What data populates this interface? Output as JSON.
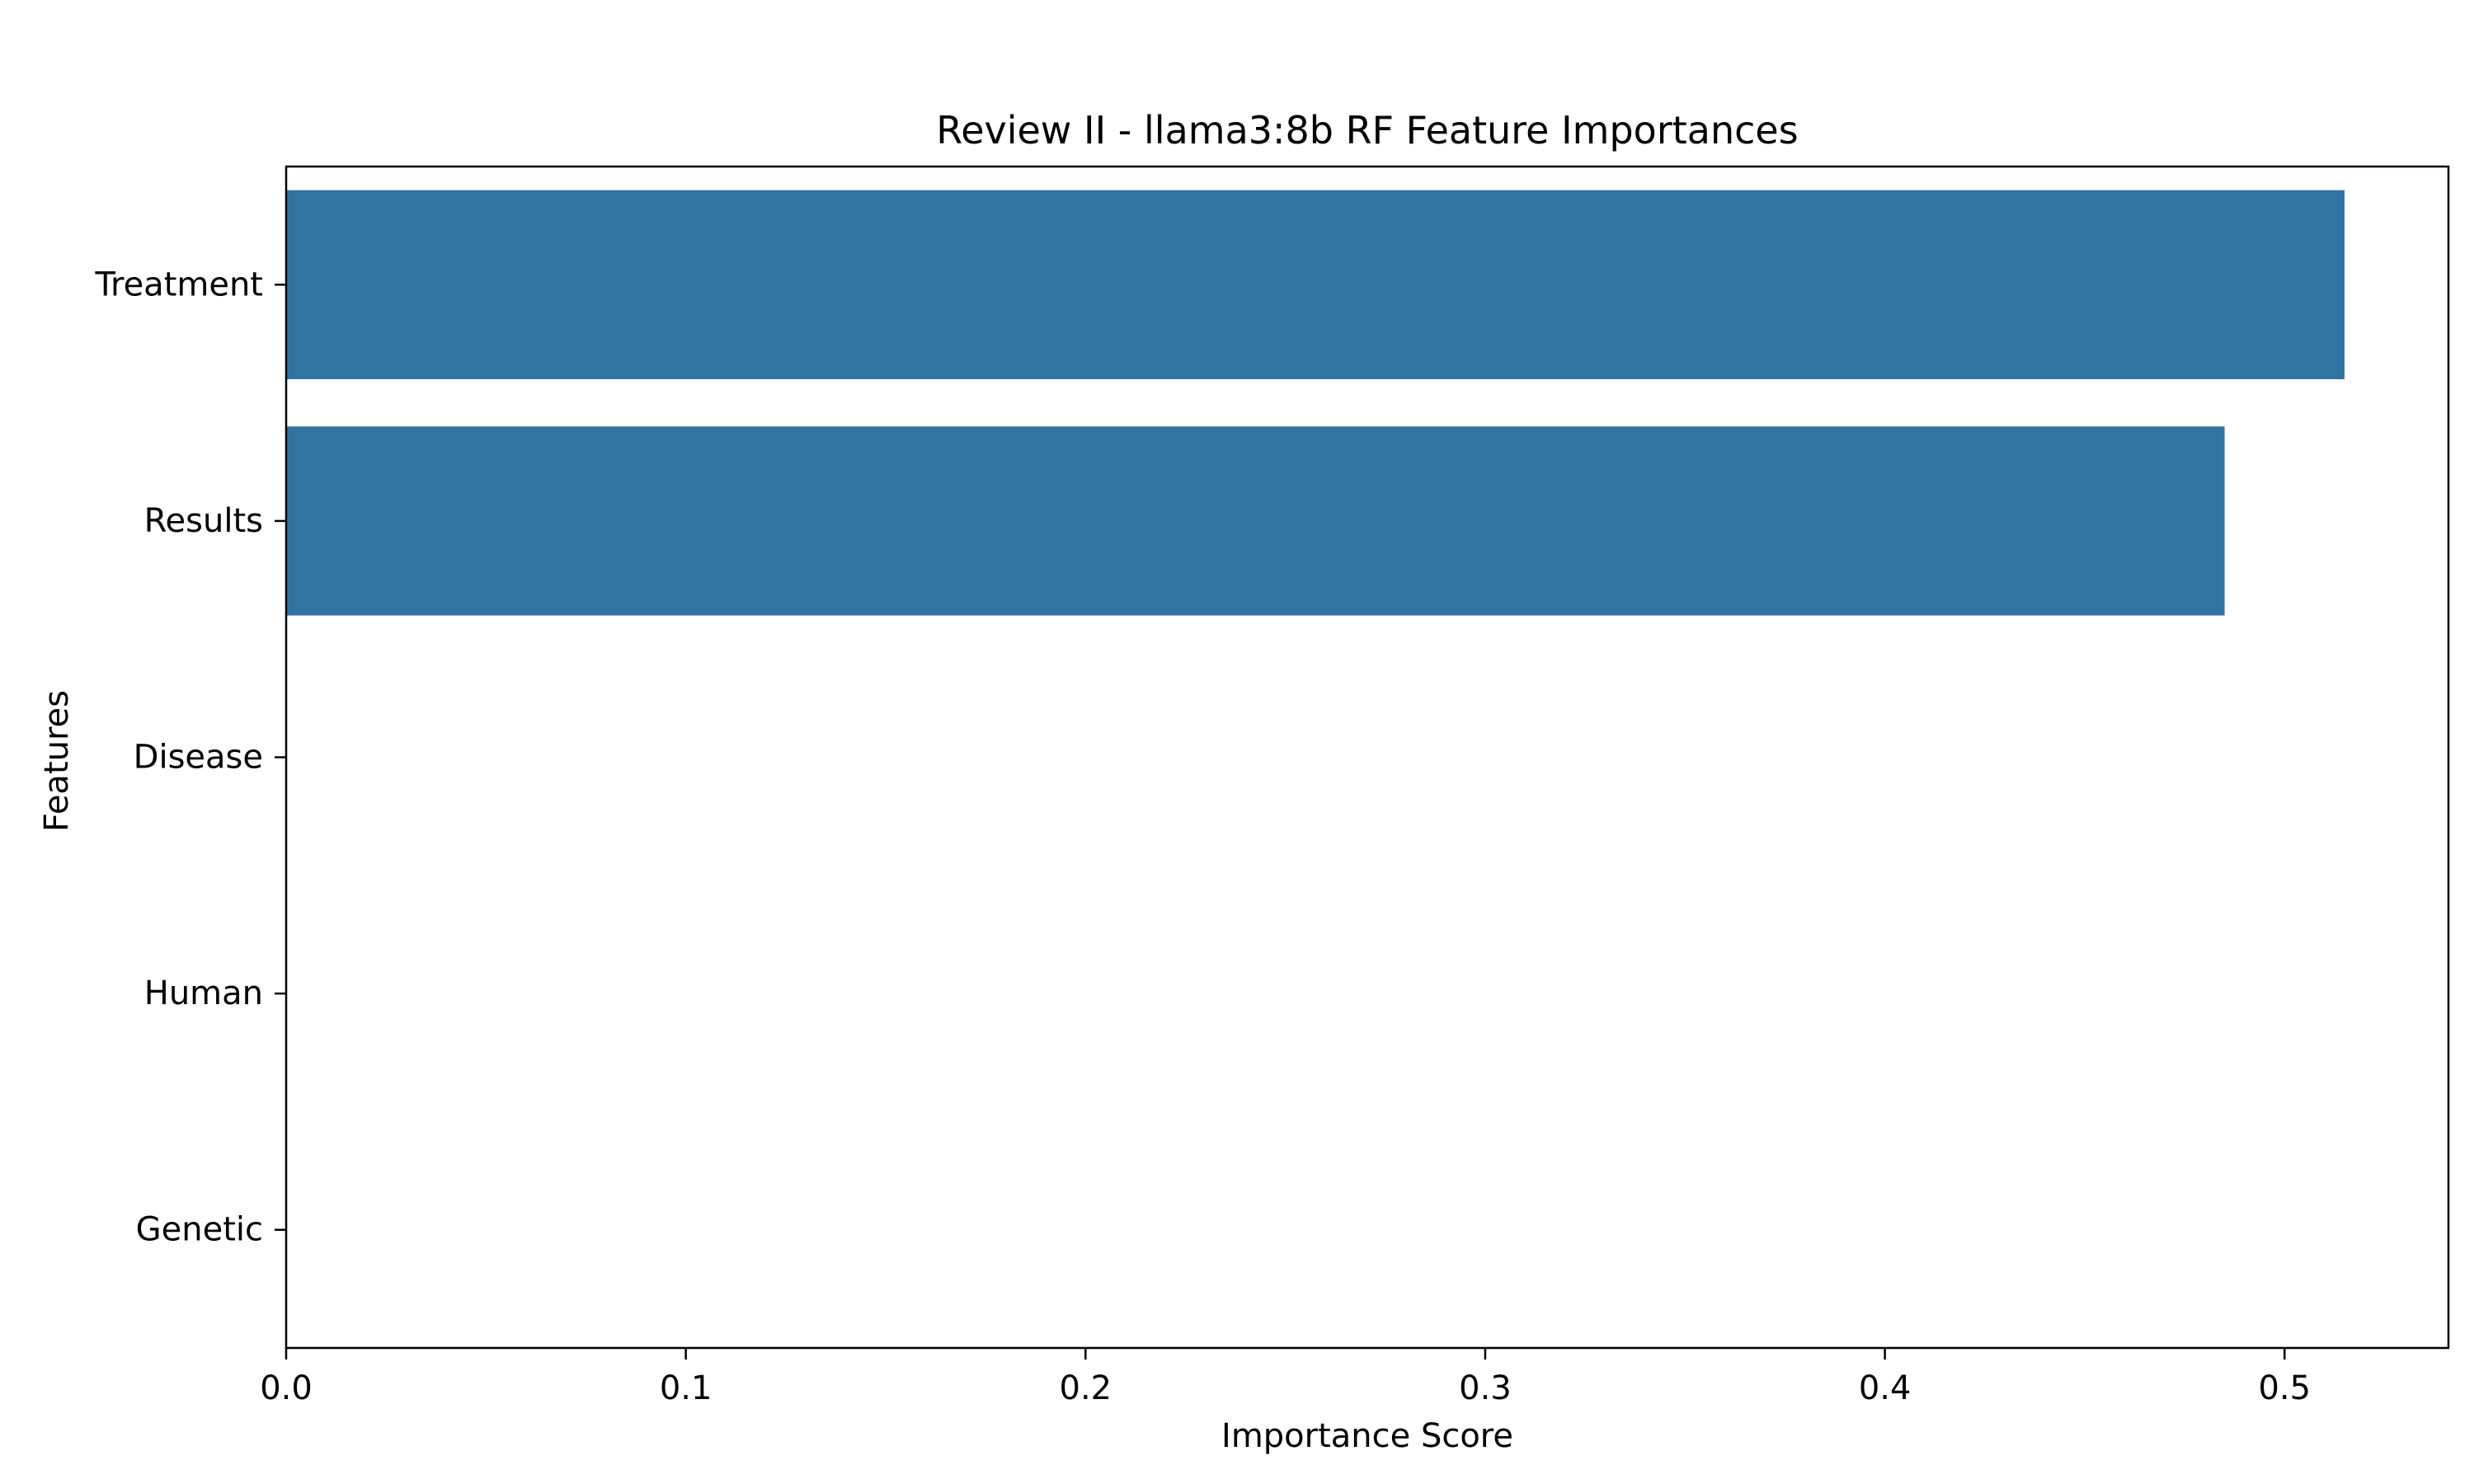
{
  "chart_data": {
    "type": "bar",
    "orientation": "horizontal",
    "title": "Review II - llama3:8b RF Feature Importances",
    "xlabel": "Importance Score",
    "ylabel": "Features",
    "categories": [
      "Treatment",
      "Results",
      "Disease",
      "Human",
      "Genetic"
    ],
    "values": [
      0.515,
      0.485,
      0.0,
      0.0,
      0.0
    ],
    "xlim": [
      0,
      0.541
    ],
    "xticks": [
      0.0,
      0.1,
      0.2,
      0.3,
      0.4,
      0.5
    ],
    "xtick_labels": [
      "0.0",
      "0.1",
      "0.2",
      "0.3",
      "0.4",
      "0.5"
    ],
    "bar_color": "#3274a1",
    "grid": false
  }
}
